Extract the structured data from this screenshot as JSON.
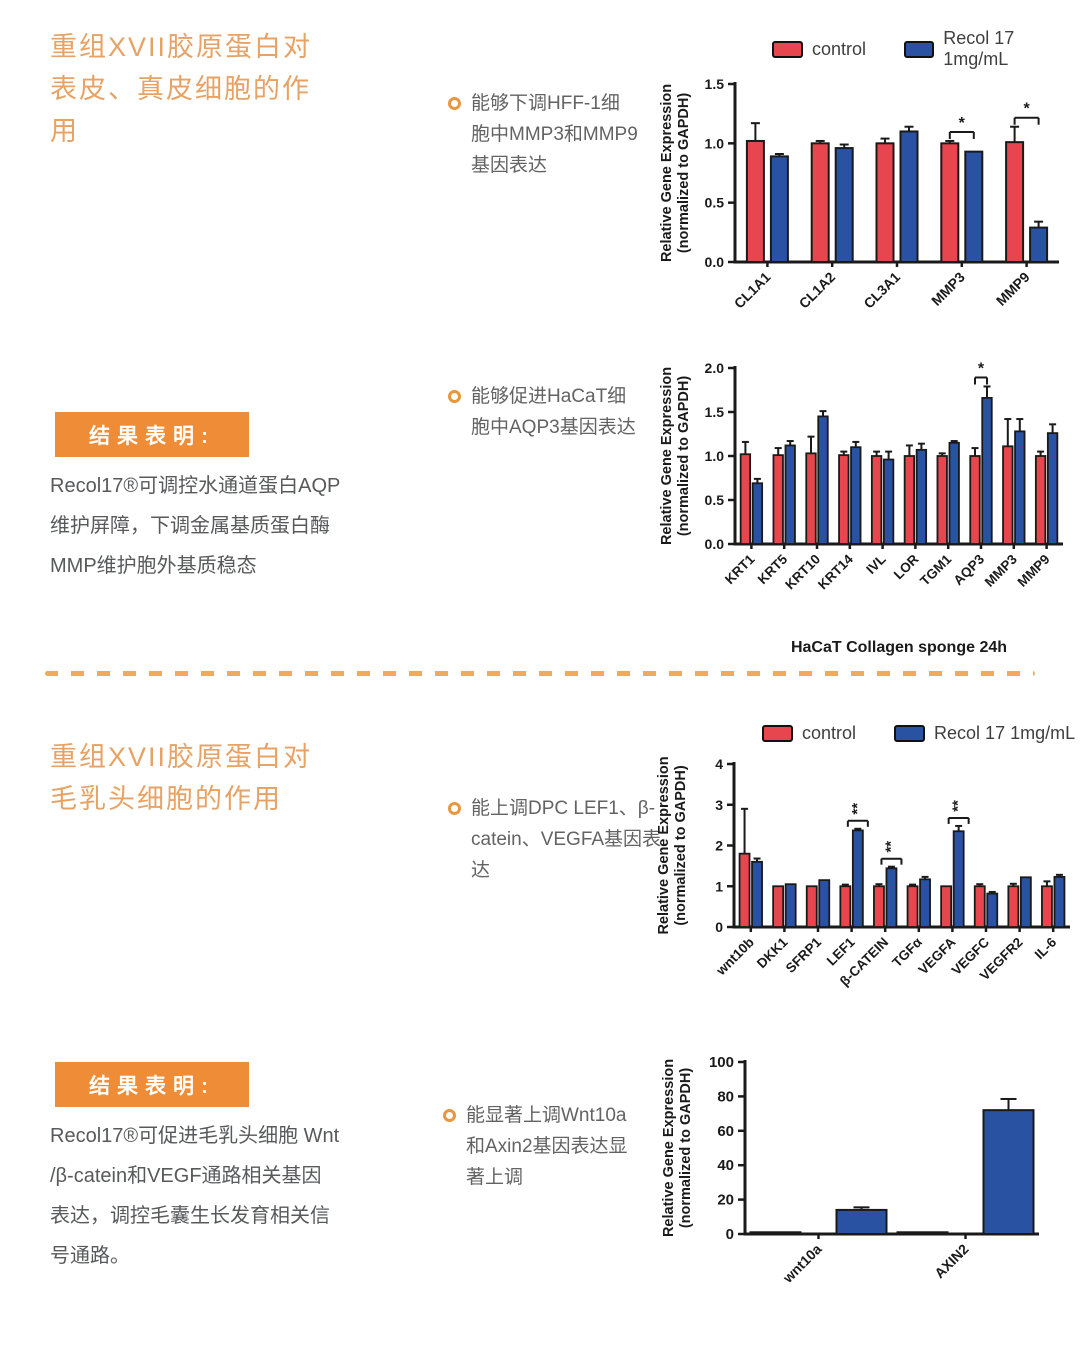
{
  "colors": {
    "control_red": "#e8464e",
    "recol_blue": "#2a52a2",
    "bar_stroke": "#1a1a1a",
    "accent_orange": "#ee8c38",
    "title_orange": "#e7a264",
    "dash_orange": "#eeaa5f",
    "bullet_orange": "#e9973d"
  },
  "legend": {
    "control_label": "control",
    "recol_label": "Recol 17 1mg/mL"
  },
  "section1": {
    "title": "重组XVII胶原蛋白对\n表皮、真皮细胞的作\n用",
    "bullet1": "能够下调HFF-1细\n胞中MMP3和MMP9\n基因表达",
    "bullet2": "能够促进HaCaT细\n胞中AQP3基因表达",
    "result_label": "结果表明:",
    "result_text": "Recol17®可调控水通道蛋白AQP\n维护屏障，下调金属基质蛋白酶\nMMP维护胞外基质稳态"
  },
  "section2": {
    "title": "重组XVII胶原蛋白对\n毛乳头细胞的作用",
    "bullet1": "能上调DPC LEF1、β-\ncatein、VEGFA基因表达",
    "bullet2": "能显著上调Wnt10a\n和Axin2基因表达显\n著上调",
    "result_label": "结果表明:",
    "result_text": "Recol17®可促进毛乳头细胞 Wnt\n/β-catein和VEGF通路相关基因\n表达，调控毛囊生长发育相关信\n号通路。"
  },
  "chart_data": [
    {
      "type": "bar",
      "title": "",
      "ylabel": "Relative Gene Expression\n(normalized to GAPDH)",
      "xlabel": "",
      "ylim": [
        0,
        1.5
      ],
      "yticks": [
        0,
        0.5,
        1.0,
        1.5
      ],
      "ytick_labels": [
        "0.0",
        "0.5",
        "1.0",
        "1.5"
      ],
      "categories": [
        "CL1A1",
        "CL1A2",
        "CL3A1",
        "MMP3",
        "MMP9"
      ],
      "series": [
        {
          "name": "control",
          "color": "#e8464e",
          "values": [
            1.02,
            1.0,
            1.0,
            1.0,
            1.01
          ],
          "errors": [
            0.15,
            0.02,
            0.04,
            0.02,
            0.13
          ]
        },
        {
          "name": "Recol 17 1mg/mL",
          "color": "#2a52a2",
          "values": [
            0.89,
            0.96,
            1.1,
            0.93,
            0.29
          ],
          "errors": [
            0.02,
            0.03,
            0.04,
            0.01,
            0.05
          ]
        }
      ],
      "significance": [
        {
          "category": "MMP3",
          "label": "*"
        },
        {
          "category": "MMP9",
          "label": "*"
        }
      ],
      "legend_position": "top-right-of-page",
      "grid": false
    },
    {
      "type": "bar",
      "title": "",
      "ylabel": "Relative Gene Expression\n(normalized to GAPDH)",
      "xlabel": "HaCaT  Collagen sponge 24h",
      "ylim": [
        0,
        2.0
      ],
      "yticks": [
        0,
        0.5,
        1.0,
        1.5,
        2.0
      ],
      "ytick_labels": [
        "0.0",
        "0.5",
        "1.0",
        "1.5",
        "2.0"
      ],
      "categories": [
        "KRT1",
        "KRT5",
        "KRT10",
        "KRT14",
        "IVL",
        "LOR",
        "TGM1",
        "AQP3",
        "MMP3",
        "MMP9"
      ],
      "series": [
        {
          "name": "control",
          "color": "#e8464e",
          "values": [
            1.02,
            1.01,
            1.03,
            1.01,
            1.0,
            1.0,
            1.0,
            1.0,
            1.11,
            1.0
          ],
          "errors": [
            0.14,
            0.08,
            0.19,
            0.04,
            0.05,
            0.12,
            0.03,
            0.09,
            0.31,
            0.05
          ]
        },
        {
          "name": "Recol 17 1mg/mL",
          "color": "#2a52a2",
          "values": [
            0.69,
            1.12,
            1.45,
            1.1,
            0.96,
            1.07,
            1.15,
            1.66,
            1.28,
            1.26
          ],
          "errors": [
            0.05,
            0.05,
            0.06,
            0.06,
            0.09,
            0.07,
            0.02,
            0.13,
            0.14,
            0.1
          ]
        }
      ],
      "significance": [
        {
          "category": "AQP3",
          "label": "*"
        }
      ],
      "grid": false
    },
    {
      "type": "bar",
      "title": "",
      "ylabel": "Relative Gene Expression\n(normalized to GAPDH)",
      "xlabel": "",
      "ylim": [
        0,
        4
      ],
      "yticks": [
        0,
        1,
        2,
        3,
        4
      ],
      "ytick_labels": [
        "0",
        "1",
        "2",
        "3",
        "4"
      ],
      "categories": [
        "wnt10b",
        "DKK1",
        "SFRP1",
        "LEF1",
        "β-CATEIN",
        "TGFα",
        "VEGFA",
        "VEGFC",
        "VEGFR2",
        "IL-6"
      ],
      "series": [
        {
          "name": "control",
          "color": "#e8464e",
          "values": [
            1.8,
            1.0,
            1.0,
            1.0,
            1.0,
            1.0,
            1.0,
            1.0,
            1.0,
            1.0
          ],
          "errors": [
            1.1,
            0.03,
            0.03,
            0.04,
            0.05,
            0.04,
            0.03,
            0.05,
            0.06,
            0.12
          ]
        },
        {
          "name": "Recol 17 1mg/mL",
          "color": "#2a52a2",
          "values": [
            1.6,
            1.05,
            1.15,
            2.37,
            1.44,
            1.17,
            2.35,
            0.82,
            1.22,
            1.23
          ],
          "errors": [
            0.08,
            0.03,
            0.03,
            0.04,
            0.04,
            0.06,
            0.13,
            0.04,
            0.03,
            0.05
          ]
        }
      ],
      "significance": [
        {
          "category": "LEF1",
          "label": "**",
          "style": "rotated"
        },
        {
          "category": "β-CATEIN",
          "label": "**",
          "style": "rotated"
        },
        {
          "category": "VEGFA",
          "label": "**",
          "style": "rotated"
        }
      ],
      "grid": false
    },
    {
      "type": "bar",
      "title": "",
      "ylabel": "Relative Gene Expression\n(normalized to GAPDH)",
      "xlabel": "",
      "ylim": [
        0,
        100
      ],
      "yticks": [
        0,
        20,
        40,
        60,
        80,
        100
      ],
      "ytick_labels": [
        "0",
        "20",
        "40",
        "60",
        "80",
        "100"
      ],
      "categories": [
        "wnt10a",
        "AXIN2"
      ],
      "series": [
        {
          "name": "control",
          "color": "#1a1a1a",
          "values": [
            1,
            1
          ],
          "errors": [
            0,
            0
          ]
        },
        {
          "name": "Recol 17 1mg/mL",
          "color": "#2a52a2",
          "values": [
            14,
            72
          ],
          "errors": [
            1.5,
            6.5
          ]
        }
      ],
      "significance": [],
      "grid": false
    }
  ]
}
